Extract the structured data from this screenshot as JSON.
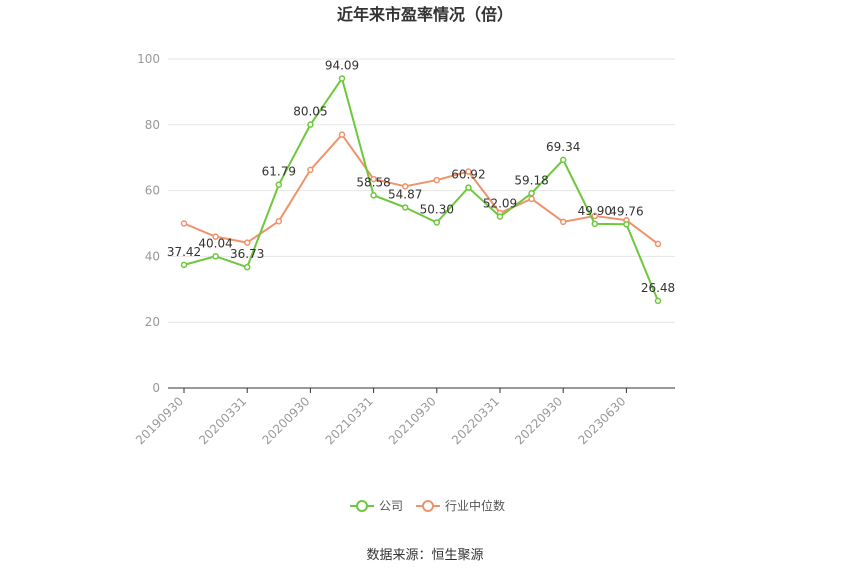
{
  "chart_data": {
    "type": "line",
    "title": "近年来市盈率情况（倍）",
    "xlabel": "",
    "ylabel": "",
    "ylim": [
      0,
      100
    ],
    "yticks": [
      0,
      20,
      40,
      60,
      80,
      100
    ],
    "x_labels": [
      "20190930",
      "",
      "20200331",
      "",
      "20200930",
      "",
      "20210331",
      "",
      "20210930",
      "",
      "20220331",
      "",
      "20220930",
      "",
      "20230630",
      ""
    ],
    "grid": true,
    "legend_position": "bottom",
    "series": [
      {
        "name": "公司",
        "color": "#6dc83c",
        "values": [
          37.42,
          40.04,
          36.73,
          61.79,
          80.05,
          94.09,
          58.58,
          54.87,
          50.3,
          60.92,
          52.09,
          59.18,
          69.34,
          49.9,
          49.76,
          26.48
        ],
        "labels": [
          "37.42",
          "40.04",
          "36.73",
          "61.79",
          "80.05",
          "94.09",
          "58.58",
          "54.87",
          "50.30",
          "60.92",
          "52.09",
          "59.18",
          "69.34",
          "49.90",
          "49.76",
          "26.48"
        ]
      },
      {
        "name": "行业中位数",
        "color": "#f0926a",
        "values": [
          50.0,
          46.0,
          44.2,
          50.7,
          66.3,
          77.0,
          63.5,
          61.3,
          63.2,
          65.8,
          53.2,
          57.5,
          50.5,
          52.3,
          51.0,
          43.8
        ]
      }
    ]
  },
  "source_text": "数据来源：恒生聚源"
}
